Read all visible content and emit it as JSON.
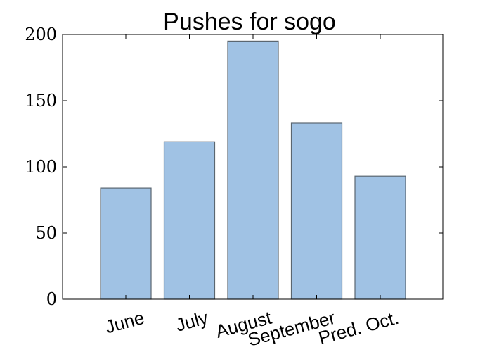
{
  "chart_data": {
    "type": "bar",
    "title": "Pushes for sogo",
    "xlabel": "",
    "ylabel": "",
    "categories": [
      "June",
      "July",
      "August",
      "September",
      "Pred. Oct."
    ],
    "values": [
      84,
      119,
      195,
      133,
      93
    ],
    "ylim": [
      0,
      200
    ],
    "yticks": [
      0,
      50,
      100,
      150,
      200
    ],
    "grid": false,
    "bar_color": "#a0c2e4",
    "bar_edge_color": "#5a6670",
    "axis_color": "#000000"
  }
}
